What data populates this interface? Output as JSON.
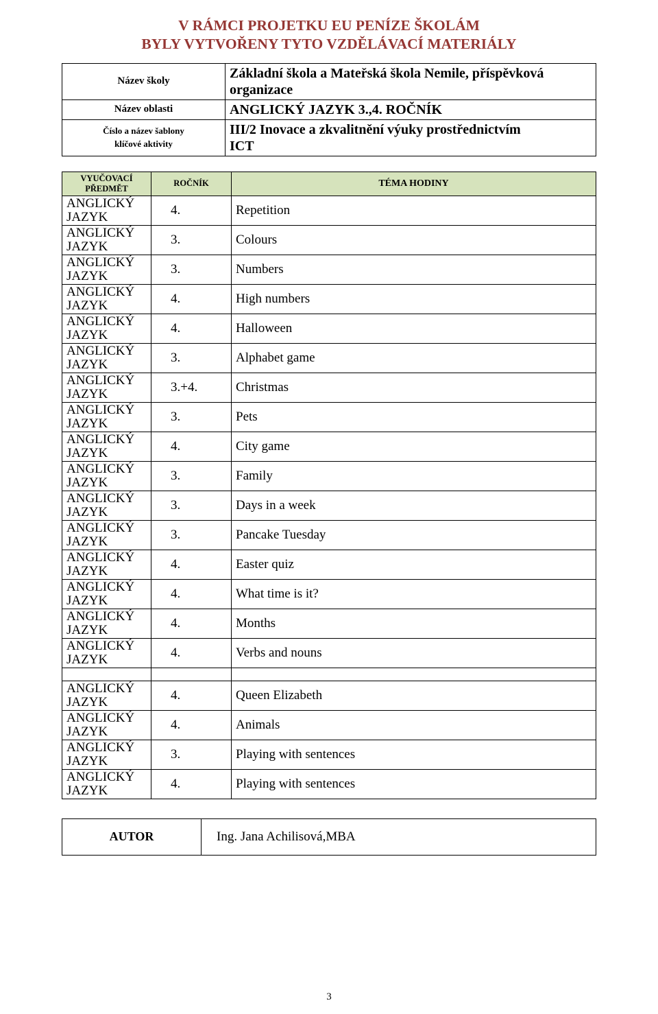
{
  "title": {
    "line1": "V RÁMCI PROJETKU EU PENÍZE ŠKOLÁM",
    "line2": "BYLY VYTVOŘENY TYTO VZDĚLÁVACÍ MATERIÁLY",
    "color": "#953734",
    "fontsize": 21.5
  },
  "info": {
    "school_label": "Název školy",
    "school_value_l1": "Základní škola a Mateřská škola Nemile, příspěvková",
    "school_value_l2": "organizace",
    "area_label": "Název oblasti",
    "area_value": "ANGLICKÝ JAZYK 3.,4. ROČNÍK",
    "template_label_l1": "Číslo a název šablony",
    "template_label_l2": "klíčové aktivity",
    "template_value_l1": "III/2 Inovace a zkvalitnění výuky prostřednictvím",
    "template_value_l2": "ICT"
  },
  "table": {
    "headers": {
      "subject_l1": "VYUČOVACÍ",
      "subject_l2": "PŘEDMĚT",
      "rocnik": "ROČNÍK",
      "tema": "TÉMA HODINY"
    },
    "header_bg": "#d6e3bc",
    "subject_l1": "ANGLICKÝ",
    "subject_l2": "JAZYK",
    "block1": [
      {
        "roc": "4.",
        "tema": "Repetition"
      },
      {
        "roc": "3.",
        "tema": "Colours"
      },
      {
        "roc": "3.",
        "tema": "Numbers"
      },
      {
        "roc": "4.",
        "tema": "High numbers"
      },
      {
        "roc": "4.",
        "tema": "Halloween"
      },
      {
        "roc": "3.",
        "tema": "Alphabet game"
      },
      {
        "roc": "3.+4.",
        "tema": "Christmas"
      },
      {
        "roc": "3.",
        "tema": "Pets"
      },
      {
        "roc": "4.",
        "tema": "City game"
      },
      {
        "roc": "3.",
        "tema": "Family"
      },
      {
        "roc": "3.",
        "tema": "Days in a week"
      },
      {
        "roc": "3.",
        "tema": "Pancake Tuesday"
      },
      {
        "roc": "4.",
        "tema": "Easter quiz"
      },
      {
        "roc": "4.",
        "tema": "What time is it?"
      },
      {
        "roc": "4.",
        "tema": "Months"
      },
      {
        "roc": "4.",
        "tema": "Verbs and nouns"
      }
    ],
    "block2": [
      {
        "roc": "4.",
        "tema": "Queen Elizabeth"
      },
      {
        "roc": "4.",
        "tema": "Animals"
      },
      {
        "roc": "3.",
        "tema": "Playing with sentences"
      },
      {
        "roc": "4.",
        "tema": "Playing with sentences"
      }
    ]
  },
  "author": {
    "label": "AUTOR",
    "value": "Ing. Jana Achilisová,MBA"
  },
  "page_number": "3"
}
